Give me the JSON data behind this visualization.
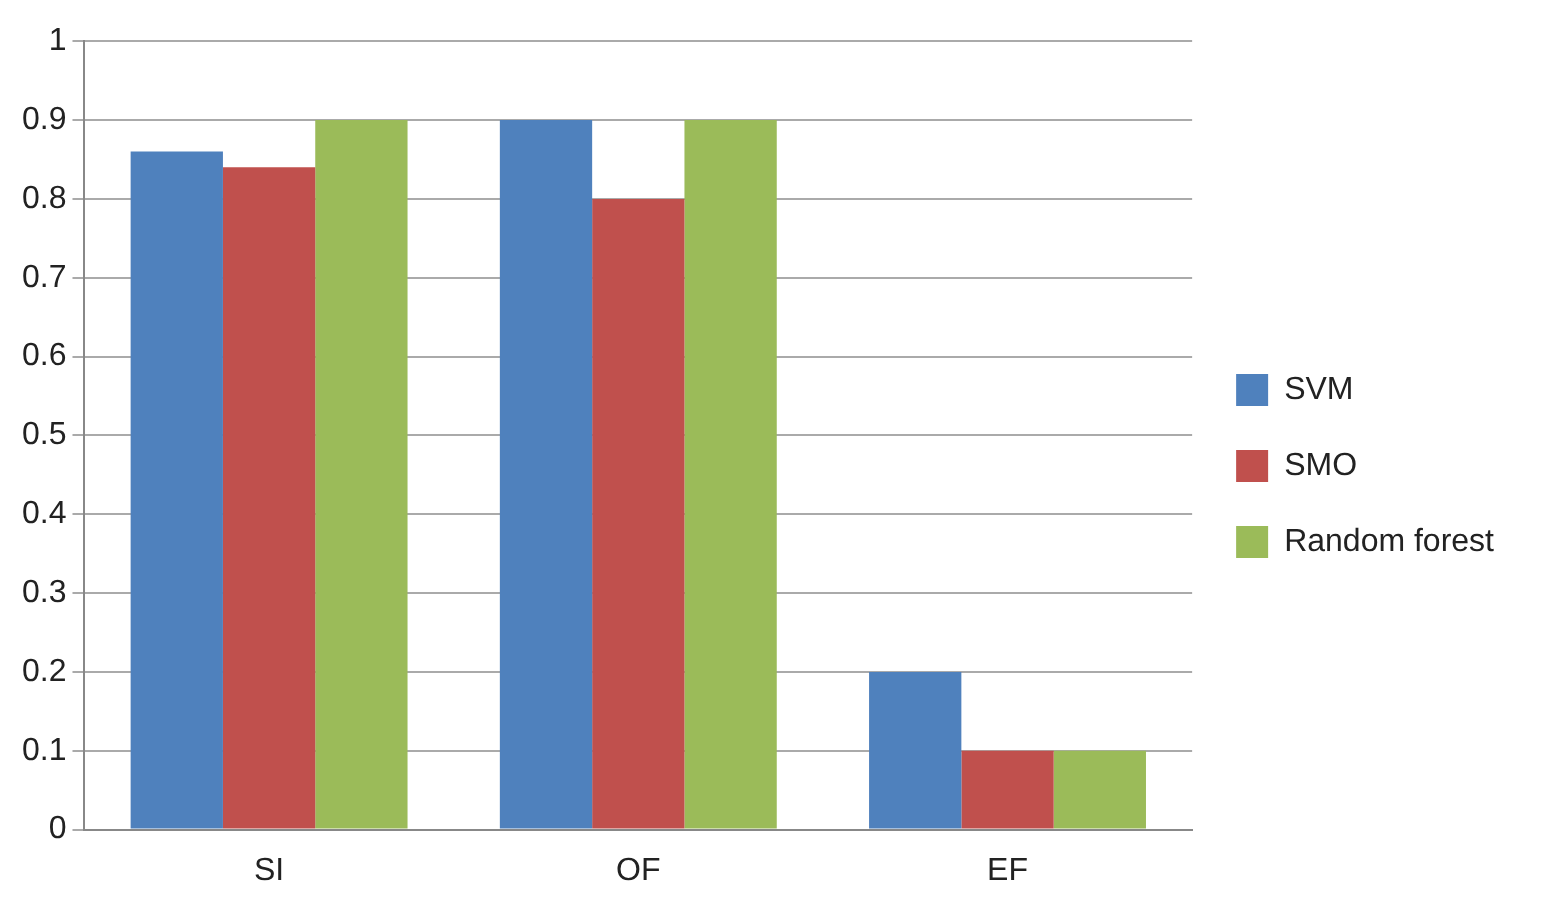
{
  "chart_data": {
    "type": "bar",
    "categories": [
      "SI",
      "OF",
      "EF"
    ],
    "series": [
      {
        "name": "SVM",
        "color": "#4f81bd",
        "values": [
          0.86,
          0.9,
          0.2
        ]
      },
      {
        "name": "SMO",
        "color": "#c0504d",
        "values": [
          0.84,
          0.8,
          0.1
        ]
      },
      {
        "name": "Random forest",
        "color": "#9bbb59",
        "values": [
          0.9,
          0.9,
          0.1
        ]
      }
    ],
    "ylim": [
      0,
      1
    ],
    "yticks": [
      0,
      0.1,
      0.2,
      0.3,
      0.4,
      0.5,
      0.6,
      0.7,
      0.8,
      0.9,
      1
    ],
    "grid": "y",
    "legend": "right"
  }
}
